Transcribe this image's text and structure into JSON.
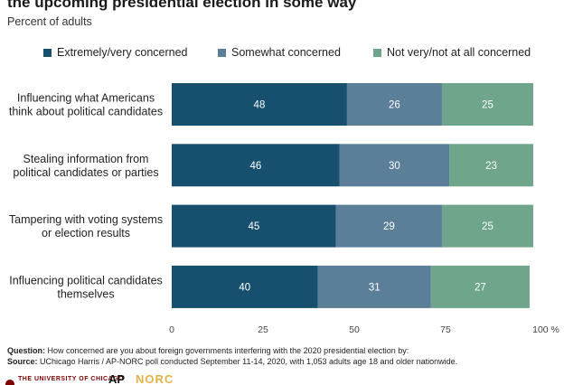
{
  "title": "the upcoming presidential election in some way",
  "subtitle": "Percent of adults",
  "colors": {
    "series1": "#17506e",
    "series2": "#5b7f99",
    "series3": "#6fa58a"
  },
  "chart_data": {
    "type": "bar",
    "orientation": "horizontal",
    "stacked": true,
    "categories": [
      [
        "Influencing what Americans",
        "think about political candidates"
      ],
      [
        "Stealing information from",
        "political candidates or parties"
      ],
      [
        "Tampering with voting systems",
        "or election results"
      ],
      [
        "Influencing political candidates",
        "themselves"
      ]
    ],
    "series": [
      {
        "name": "Extremely/very concerned",
        "values": [
          48,
          46,
          45,
          40
        ]
      },
      {
        "name": "Somewhat concerned",
        "values": [
          26,
          30,
          29,
          31
        ]
      },
      {
        "name": "Not very/not at all concerned",
        "values": [
          25,
          23,
          25,
          27
        ]
      }
    ],
    "xlim": [
      0,
      100
    ],
    "xticks": [
      "0",
      "25",
      "50",
      "75",
      "100 %"
    ],
    "grid": false,
    "legend_position": "top"
  },
  "notes": {
    "question_label": "Question:",
    "question_text": " How concerned are you about foreign governments interfering with the 2020 presidential election by:",
    "source_label": "Source:",
    "source_text": " UChicago Harris / AP-NORC poll conducted September 11-14, 2020, with 1,053 adults age 18 and older nationwide."
  },
  "logos": {
    "uchicago": "THE UNIVERSITY OF CHICAGO",
    "ap": "AP",
    "norc": "NORC"
  }
}
